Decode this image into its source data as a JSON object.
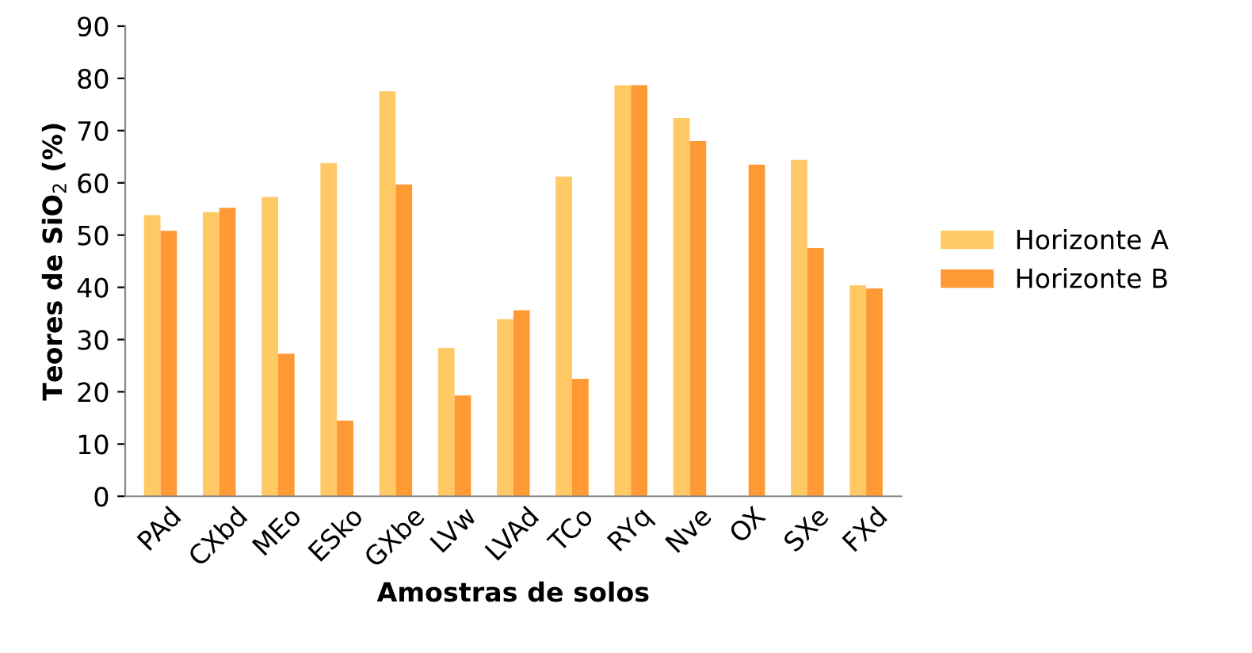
{
  "chart_data": {
    "type": "bar",
    "xlabel": "Amostras de solos",
    "ylabel": "Teores de SiO$_{2}$ (%)",
    "categories": [
      "PAd",
      "CXbd",
      "MEo",
      "ESko",
      "GXbe",
      "LVw",
      "LVAd",
      "TCo",
      "RYq",
      "Nve",
      "OX",
      "SXe",
      "FXd"
    ],
    "series": [
      {
        "name": "Horizonte A",
        "color": "#ffc966",
        "values": [
          53.8,
          54.4,
          57.3,
          63.8,
          77.5,
          28.4,
          33.9,
          61.2,
          78.7,
          72.4,
          null,
          64.4,
          40.4
        ]
      },
      {
        "name": "Horizonte B",
        "color": "#ff9933",
        "values": [
          50.8,
          55.2,
          27.3,
          14.5,
          59.7,
          19.3,
          35.6,
          22.5,
          78.7,
          68.0,
          63.5,
          47.5,
          39.8
        ]
      }
    ],
    "ylim": [
      0,
      90
    ],
    "yticks": [
      0,
      10,
      20,
      30,
      40,
      50,
      60,
      70,
      80,
      90
    ],
    "grid": false,
    "legend": "right"
  }
}
